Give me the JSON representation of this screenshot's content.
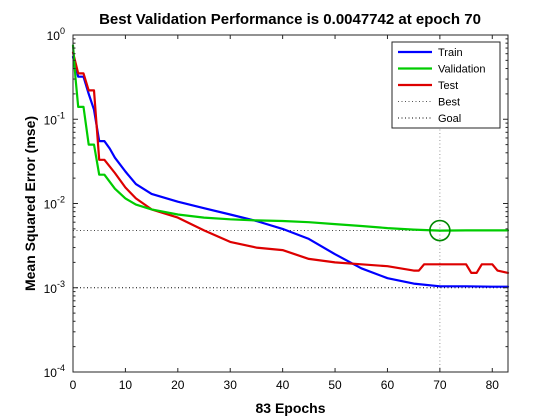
{
  "chart_data": {
    "type": "line",
    "title": "Best Validation Performance is 0.0047742 at epoch 70",
    "xlabel": "83 Epochs",
    "ylabel": "Mean Squared Error  (mse)",
    "xlim": [
      0,
      83
    ],
    "ylim": [
      0.0001,
      1
    ],
    "yscale": "log",
    "x_ticks": [
      0,
      10,
      20,
      30,
      40,
      50,
      60,
      70,
      80
    ],
    "x_tick_labels": [
      "0",
      "10",
      "20",
      "30",
      "40",
      "50",
      "60",
      "70",
      "80"
    ],
    "y_ticks": [
      1,
      0.1,
      0.01,
      0.001,
      0.0001
    ],
    "y_tick_labels": [
      {
        "base": "10",
        "exp": "0"
      },
      {
        "base": "10",
        "exp": "-1"
      },
      {
        "base": "10",
        "exp": "-2"
      },
      {
        "base": "10",
        "exp": "-3"
      },
      {
        "base": "10",
        "exp": "-4"
      }
    ],
    "legend_position": "top-right",
    "series": [
      {
        "name": "Train",
        "color": "#0000ff",
        "style": "solid",
        "x": [
          0,
          1,
          2,
          3,
          4,
          5,
          6,
          7,
          8,
          10,
          12,
          15,
          20,
          25,
          30,
          35,
          40,
          45,
          50,
          55,
          60,
          65,
          70,
          75,
          80,
          83
        ],
        "y": [
          0.55,
          0.32,
          0.32,
          0.2,
          0.13,
          0.055,
          0.055,
          0.045,
          0.035,
          0.024,
          0.017,
          0.013,
          0.0105,
          0.0088,
          0.0074,
          0.0062,
          0.005,
          0.0038,
          0.0025,
          0.0017,
          0.0013,
          0.00112,
          0.00104,
          0.00104,
          0.00103,
          0.00103
        ]
      },
      {
        "name": "Validation",
        "color": "#00cc00",
        "style": "solid",
        "x": [
          0,
          0.5,
          1,
          2,
          3,
          4,
          5,
          6,
          8,
          10,
          12,
          15,
          20,
          25,
          30,
          35,
          40,
          45,
          50,
          55,
          60,
          65,
          70,
          75,
          80,
          83
        ],
        "y": [
          0.75,
          0.3,
          0.14,
          0.14,
          0.05,
          0.05,
          0.022,
          0.022,
          0.015,
          0.0115,
          0.0097,
          0.0085,
          0.0074,
          0.0068,
          0.0065,
          0.0063,
          0.0062,
          0.006,
          0.0057,
          0.0054,
          0.0051,
          0.0049,
          0.00477,
          0.0048,
          0.0048,
          0.0048
        ]
      },
      {
        "name": "Test",
        "color": "#dd0000",
        "style": "solid",
        "x": [
          0,
          1,
          2,
          3,
          4,
          5,
          6,
          8,
          10,
          12,
          15,
          20,
          25,
          30,
          35,
          40,
          45,
          50,
          55,
          60,
          65,
          66,
          67,
          70,
          75,
          76,
          77,
          78,
          80,
          81,
          83
        ],
        "y": [
          0.62,
          0.35,
          0.35,
          0.22,
          0.22,
          0.033,
          0.033,
          0.023,
          0.0155,
          0.0115,
          0.0085,
          0.0068,
          0.0048,
          0.0035,
          0.003,
          0.0028,
          0.0022,
          0.002,
          0.0019,
          0.0018,
          0.0016,
          0.0016,
          0.0019,
          0.0019,
          0.0019,
          0.0015,
          0.0015,
          0.0019,
          0.0019,
          0.0016,
          0.0015
        ]
      }
    ],
    "reference_lines": [
      {
        "name": "Best",
        "orientation": "vertical",
        "value": 70,
        "color": "#999999",
        "style": "dotted"
      },
      {
        "name": "Goal",
        "orientation": "horizontal",
        "value": 0.001,
        "color": "#000000",
        "style": "dotted"
      }
    ],
    "best_level_line": {
      "orientation": "horizontal",
      "value": 0.0047742,
      "color": "#444444",
      "style": "dotted"
    },
    "best_marker": {
      "x": 70,
      "y": 0.0047742,
      "color": "#008800",
      "shape": "circle"
    }
  }
}
